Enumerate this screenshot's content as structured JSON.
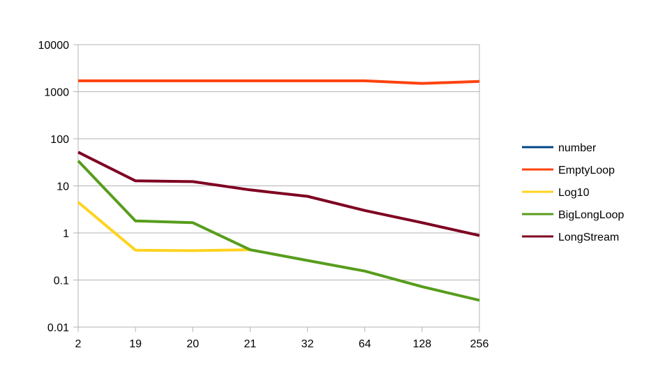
{
  "chart_data": {
    "type": "line",
    "title": "",
    "xlabel": "",
    "ylabel": "",
    "y_scale": "log",
    "ylim": [
      0.01,
      10000
    ],
    "categories": [
      "2",
      "19",
      "20",
      "21",
      "32",
      "64",
      "128",
      "256"
    ],
    "y_ticks": [
      {
        "value": 10000,
        "label": "10000"
      },
      {
        "value": 1000,
        "label": "1000"
      },
      {
        "value": 100,
        "label": "100"
      },
      {
        "value": 10,
        "label": "10"
      },
      {
        "value": 1,
        "label": "1"
      },
      {
        "value": 0.1,
        "label": "0.1"
      },
      {
        "value": 0.01,
        "label": "0.01"
      }
    ],
    "grid": true,
    "legend_position": "right",
    "series": [
      {
        "name": "number",
        "color": "#004586",
        "values": [
          null,
          null,
          null,
          null,
          null,
          null,
          null,
          null
        ]
      },
      {
        "name": "EmptyLoop",
        "color": "#ff420e",
        "values": [
          1700,
          1700,
          1700,
          1700,
          1700,
          1700,
          1500,
          1650
        ]
      },
      {
        "name": "Log10",
        "color": "#ffd320",
        "values": [
          4.5,
          0.43,
          0.42,
          0.44,
          null,
          null,
          null,
          null
        ]
      },
      {
        "name": "BigLongLoop",
        "color": "#579d1c",
        "values": [
          34,
          1.8,
          1.65,
          0.44,
          0.26,
          0.155,
          0.072,
          0.037
        ]
      },
      {
        "name": "LongStream",
        "color": "#7e0021",
        "values": [
          52,
          12.8,
          12.3,
          8.2,
          6.0,
          3.0,
          1.65,
          0.88
        ]
      }
    ]
  }
}
